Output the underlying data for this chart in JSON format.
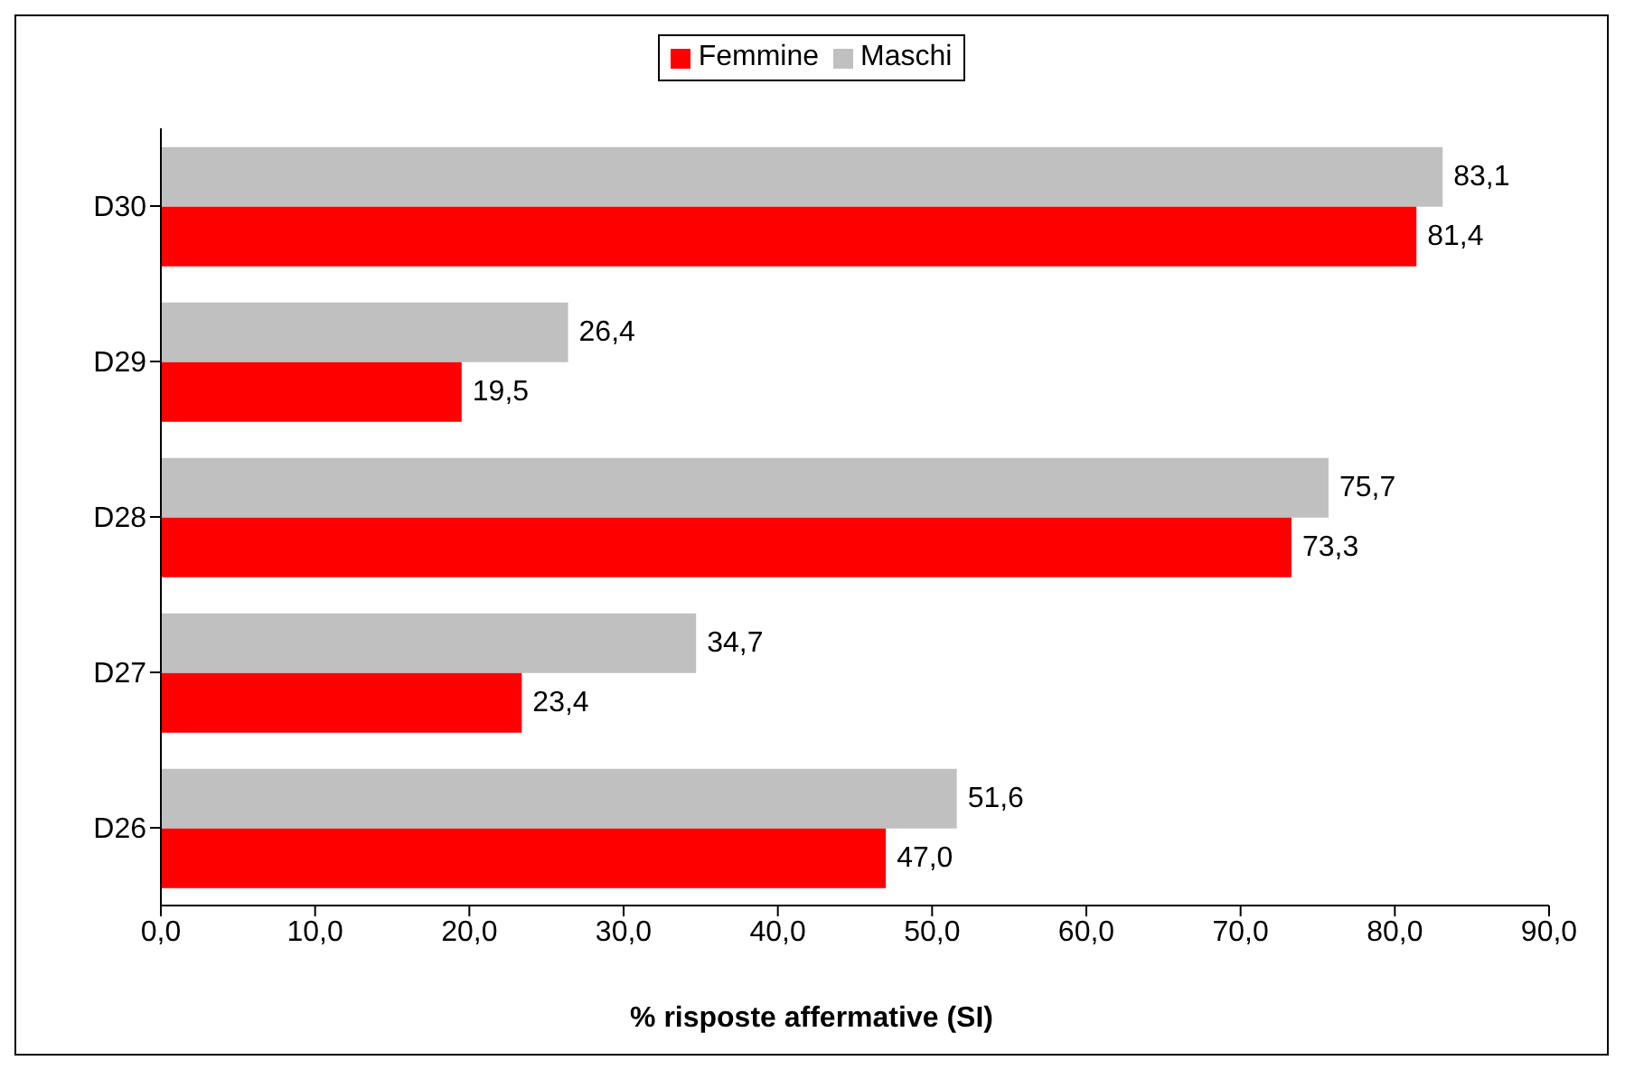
{
  "chart_data": {
    "type": "bar",
    "orientation": "horizontal",
    "xlabel": "% risposte affermative (SI)",
    "categories": [
      "D30",
      "D29",
      "D28",
      "D27",
      "D26"
    ],
    "series": [
      {
        "name": "Femmine",
        "color": "#ff0000",
        "values": [
          81.4,
          19.5,
          73.3,
          23.4,
          47.0
        ],
        "value_labels": [
          "81,4",
          "19,5",
          "73,3",
          "23,4",
          "47,0"
        ]
      },
      {
        "name": "Maschi",
        "color": "#c0c0c0",
        "values": [
          83.1,
          26.4,
          75.7,
          34.7,
          51.6
        ],
        "value_labels": [
          "83,1",
          "26,4",
          "75,7",
          "34,7",
          "51,6"
        ]
      }
    ],
    "xlim": [
      0,
      90
    ],
    "xticks": [
      {
        "value": 0,
        "label": "0,0"
      },
      {
        "value": 10,
        "label": "10,0"
      },
      {
        "value": 20,
        "label": "20,0"
      },
      {
        "value": 30,
        "label": "30,0"
      },
      {
        "value": 40,
        "label": "40,0"
      },
      {
        "value": 50,
        "label": "50,0"
      },
      {
        "value": 60,
        "label": "60,0"
      },
      {
        "value": 70,
        "label": "70,0"
      },
      {
        "value": 80,
        "label": "80,0"
      },
      {
        "value": 90,
        "label": "90,0"
      }
    ],
    "legend": "top",
    "grid": false
  }
}
